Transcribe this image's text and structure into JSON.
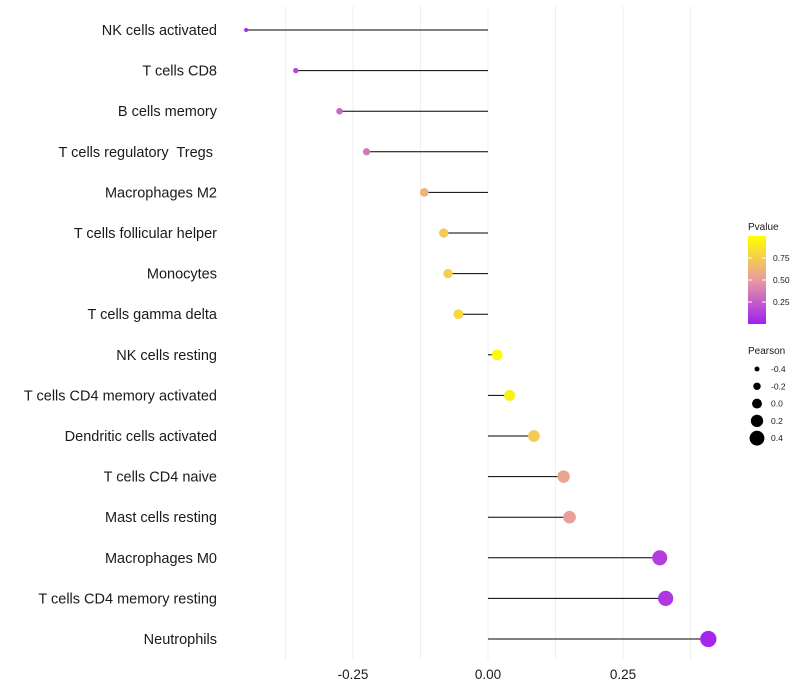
{
  "chart_data": {
    "type": "lollipop",
    "categories": [
      "NK cells activated",
      "T cells CD8",
      "B cells memory",
      "T cells regulatory  Tregs ",
      "Macrophages M2",
      "T cells follicular helper",
      "Monocytes",
      "T cells gamma delta",
      "NK cells resting",
      "T cells CD4 memory activated",
      "Dendritic cells activated",
      "T cells CD4 naive",
      "Mast cells resting",
      "Macrophages M0",
      "T cells CD4 memory resting",
      "Neutrophils"
    ],
    "pearson": [
      -0.448,
      -0.356,
      -0.275,
      -0.225,
      -0.118,
      -0.082,
      -0.074,
      -0.055,
      0.017,
      0.04,
      0.085,
      0.14,
      0.151,
      0.318,
      0.329,
      0.408
    ],
    "pvalue": [
      0.05,
      0.15,
      0.28,
      0.36,
      0.62,
      0.74,
      0.77,
      0.8,
      0.98,
      0.92,
      0.74,
      0.55,
      0.52,
      0.12,
      0.1,
      0.03
    ],
    "x_ticks": [
      -0.25,
      0.0,
      0.25
    ],
    "x_tick_labels": [
      "-0.25",
      "0.00",
      "0.25"
    ],
    "xlim": [
      -0.5,
      0.45
    ],
    "xlabel": "",
    "ylabel": "",
    "grid": true,
    "legend_color": {
      "title": "Pvalue",
      "ticks": [
        0.25,
        0.5,
        0.75
      ],
      "tick_labels": [
        "0.25",
        "0.50",
        "0.75"
      ],
      "range": [
        0.0,
        1.0
      ],
      "low_color": "#a020f0",
      "mid_color": "#e89ba0",
      "high_color": "#ffff00"
    },
    "legend_size": {
      "title": "Pearson",
      "values": [
        -0.4,
        -0.2,
        0.0,
        0.2,
        0.4
      ],
      "labels": [
        "-0.4",
        "-0.2",
        "0.0",
        "0.2",
        "0.4"
      ]
    }
  }
}
